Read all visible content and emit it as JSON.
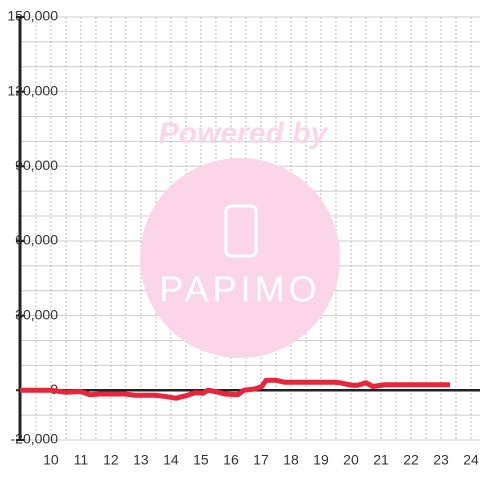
{
  "chart_data": {
    "type": "line",
    "watermark": {
      "title": "Powered by",
      "logo": "PAPIMO"
    },
    "x": [
      8.97,
      10,
      10.5,
      11,
      11.3,
      11.63,
      12.47,
      12.8,
      13.47,
      13.8,
      14.17,
      14.5,
      14.8,
      15.07,
      15.23,
      15.47,
      15.8,
      16.23,
      16.43,
      16.8,
      17.03,
      17.17,
      17.5,
      17.8,
      18.3,
      19.47,
      19.63,
      20.03,
      20.23,
      20.5,
      20.73,
      21.13,
      23.3
    ],
    "series": [
      {
        "color": "#e8253a",
        "values": [
          0,
          0,
          -800,
          -500,
          -1800,
          -1500,
          -1500,
          -2000,
          -2000,
          -2500,
          -3200,
          -2200,
          -1000,
          -1200,
          0,
          -500,
          -1500,
          -1800,
          0,
          500,
          1500,
          4000,
          4000,
          3200,
          3200,
          3200,
          3000,
          2000,
          2000,
          3000,
          1500,
          2200,
          2200
        ]
      }
    ],
    "xlim": [
      8.97,
      24.3
    ],
    "xticks": [
      10,
      11,
      12,
      13,
      14,
      15,
      16,
      17,
      18,
      19,
      20,
      21,
      22,
      23,
      24
    ],
    "xgrid_minor": [
      9.5,
      10.5,
      11.5,
      12.5,
      13.5,
      14.5,
      15.5,
      16.5,
      17.5,
      18.5,
      19.5,
      20.5,
      21.5,
      22.5,
      23.5
    ],
    "ylim": [
      -20000,
      150000
    ],
    "yticks": [
      {
        "value": -20000,
        "label": "-20,000"
      },
      0,
      {
        "value": 30000,
        "label": "30,000"
      },
      {
        "value": 60000,
        "label": "60,000"
      },
      {
        "value": 90000,
        "label": "90,000"
      },
      {
        "value": 120000,
        "label": "120,000"
      },
      {
        "value": 150000,
        "label": "150,000"
      }
    ],
    "ygrid_minor": [
      -10000,
      10000,
      20000,
      40000,
      50000,
      70000,
      80000,
      100000,
      110000,
      130000,
      140000
    ],
    "grid": true
  }
}
